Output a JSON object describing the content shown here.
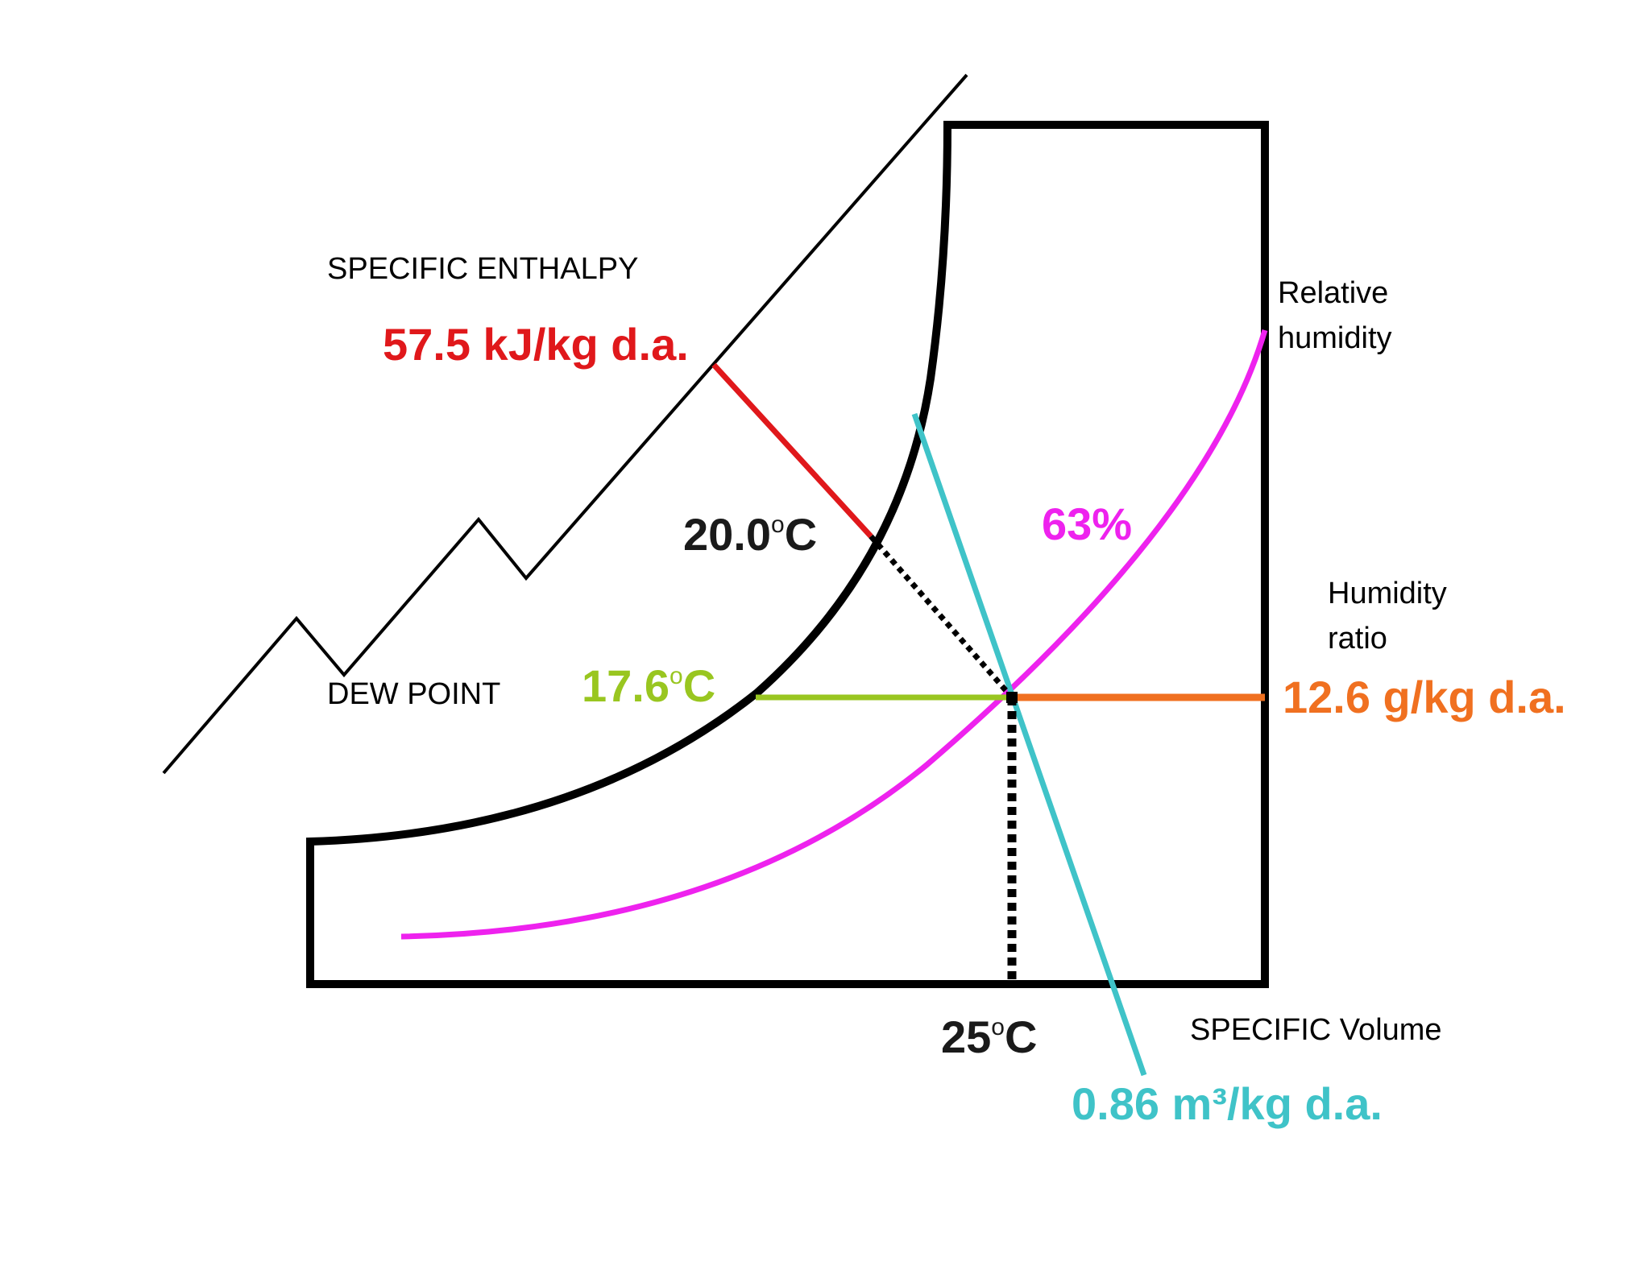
{
  "labels": {
    "specific_enthalpy": "SPECIFIC ENTHALPY",
    "enthalpy_value": "57.5 kJ/kg d.a.",
    "relative_humidity_line1": "Relative",
    "relative_humidity_line2": "humidity",
    "wet_bulb_value": "20.0",
    "degree_c": "C",
    "rh_value": "63%",
    "humidity_ratio_line1": "Humidity",
    "humidity_ratio_line2": "ratio",
    "dew_point": "DEW POINT",
    "dew_point_value": "17.6",
    "humidity_ratio_value": "12.6 g/kg d.a.",
    "dry_bulb_value": "25",
    "specific_volume": "SPECIFIC Volume",
    "specific_volume_value": "0.86 m³/kg d.a.",
    "degree_sign": "o"
  },
  "colors": {
    "outline": "#000000",
    "enthalpy": "#e0181b",
    "relative_humidity": "#ee22ee",
    "specific_volume": "#3fc3c8",
    "dew_point": "#99c620",
    "humidity_ratio": "#f07020",
    "wet_bulb_dotted": "#000000"
  }
}
